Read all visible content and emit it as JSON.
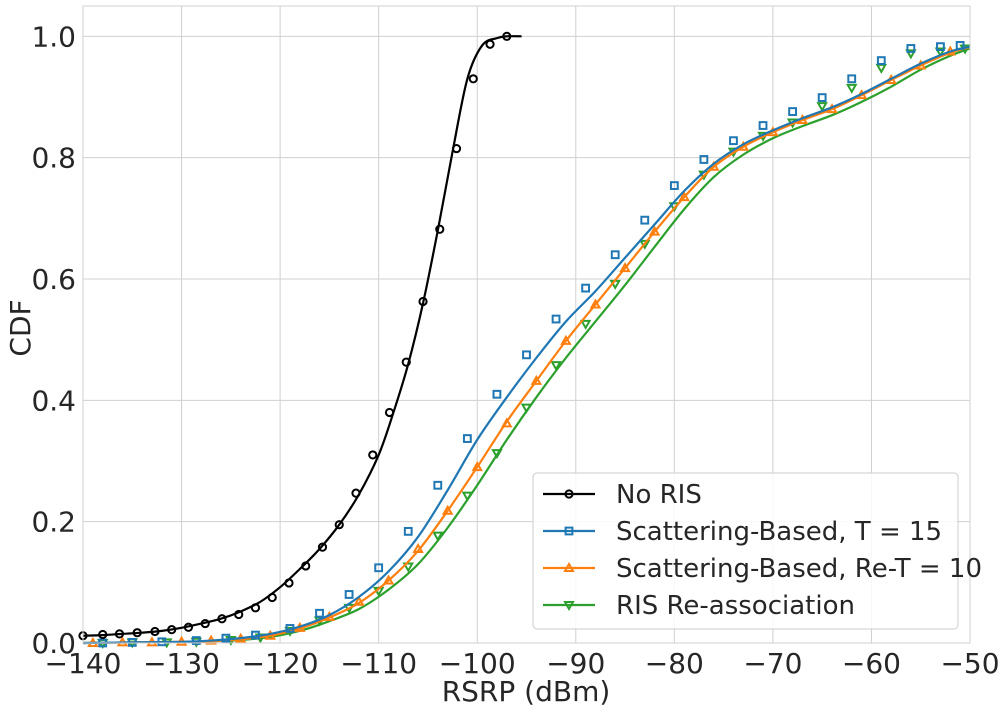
{
  "chart_data": {
    "type": "line",
    "title": "",
    "xlabel": "RSRP (dBm)",
    "ylabel": "CDF",
    "xlim": [
      -140,
      -50
    ],
    "ylim": [
      0,
      1.05
    ],
    "xticks": [
      -140,
      -130,
      -120,
      -110,
      -100,
      -90,
      -80,
      -70,
      -60,
      -50
    ],
    "xtick_labels": [
      "−140",
      "−130",
      "−120",
      "−110",
      "−100",
      "−90",
      "−80",
      "−70",
      "−60",
      "−50"
    ],
    "yticks": [
      0.0,
      0.2,
      0.4,
      0.6,
      0.8,
      1.0
    ],
    "ytick_labels": [
      "0.0",
      "0.2",
      "0.4",
      "0.6",
      "0.8",
      "1.0"
    ],
    "grid": true,
    "legend_position": "bottom-right",
    "series": [
      {
        "name": "No RIS",
        "color": "#000000",
        "marker": "circle",
        "x": [
          -140,
          -138,
          -136,
          -134,
          -132,
          -130,
          -128,
          -126,
          -124,
          -122,
          -120,
          -118,
          -116,
          -114,
          -112,
          -110,
          -108.5,
          -107,
          -105.5,
          -104,
          -102.5,
          -101,
          -99.5,
          -98,
          -97,
          -95.5
        ],
        "y": [
          0.012,
          0.013,
          0.015,
          0.017,
          0.02,
          0.025,
          0.032,
          0.04,
          0.052,
          0.068,
          0.092,
          0.122,
          0.155,
          0.195,
          0.245,
          0.31,
          0.38,
          0.46,
          0.56,
          0.68,
          0.81,
          0.93,
          0.985,
          0.997,
          1.0,
          1.0
        ],
        "marker_x": [
          -140,
          -138,
          -136.3,
          -134.5,
          -132.7,
          -131,
          -129.3,
          -127.6,
          -125.9,
          -124.2,
          -122.5,
          -120.8,
          -119.1,
          -117.4,
          -115.7,
          -114,
          -112.3,
          -110.6,
          -108.9,
          -107.2,
          -105.5,
          -103.8,
          -102.1,
          -100.4,
          -98.7,
          -97
        ],
        "marker_y": [
          0.012,
          0.014,
          0.015,
          0.017,
          0.019,
          0.022,
          0.026,
          0.032,
          0.04,
          0.047,
          0.058,
          0.075,
          0.099,
          0.127,
          0.158,
          0.195,
          0.247,
          0.31,
          0.38,
          0.463,
          0.563,
          0.682,
          0.815,
          0.93,
          0.987,
          1.0
        ]
      },
      {
        "name": "Scattering-Based, T = 15",
        "color": "#1f77b4",
        "marker": "square",
        "x": [
          -140,
          -135,
          -130,
          -127,
          -124,
          -121,
          -118,
          -115,
          -112,
          -109,
          -106,
          -103,
          -100,
          -97,
          -94,
          -91,
          -88,
          -85,
          -82,
          -79,
          -76,
          -73,
          -70,
          -67,
          -64,
          -61,
          -58,
          -55,
          -52,
          -50
        ],
        "y": [
          0.0,
          0.001,
          0.002,
          0.004,
          0.008,
          0.015,
          0.027,
          0.046,
          0.076,
          0.118,
          0.175,
          0.252,
          0.335,
          0.405,
          0.47,
          0.53,
          0.58,
          0.635,
          0.69,
          0.745,
          0.79,
          0.822,
          0.845,
          0.865,
          0.883,
          0.905,
          0.93,
          0.955,
          0.975,
          0.983
        ],
        "marker_x": [
          -138,
          -135,
          -132,
          -128.5,
          -125.5,
          -122.5,
          -119,
          -116,
          -113,
          -110,
          -107,
          -104,
          -101,
          -98,
          -95,
          -92,
          -89,
          -86,
          -83,
          -80,
          -77,
          -74,
          -71,
          -68,
          -65,
          -62,
          -59,
          -56,
          -53,
          -51
        ],
        "marker_y": [
          0.0,
          0.001,
          0.002,
          0.004,
          0.008,
          0.013,
          0.024,
          0.049,
          0.08,
          0.124,
          0.184,
          0.26,
          0.337,
          0.41,
          0.475,
          0.534,
          0.585,
          0.64,
          0.697,
          0.754,
          0.797,
          0.828,
          0.853,
          0.876,
          0.899,
          0.93,
          0.96,
          0.98,
          0.983,
          0.985
        ]
      },
      {
        "name": "Scattering-Based, Re-T = 10",
        "color": "#ff7f0e",
        "marker": "triangle-up",
        "x": [
          -140,
          -135,
          -130,
          -127,
          -124,
          -121,
          -118,
          -115,
          -112,
          -109,
          -106,
          -103,
          -100,
          -97,
          -94,
          -91,
          -88,
          -85,
          -82,
          -79,
          -76,
          -73,
          -70,
          -67,
          -64,
          -61,
          -58,
          -55,
          -52,
          -50
        ],
        "y": [
          0.0,
          0.001,
          0.002,
          0.003,
          0.006,
          0.012,
          0.024,
          0.042,
          0.066,
          0.103,
          0.152,
          0.218,
          0.29,
          0.365,
          0.432,
          0.498,
          0.558,
          0.618,
          0.678,
          0.735,
          0.785,
          0.818,
          0.842,
          0.862,
          0.88,
          0.903,
          0.928,
          0.952,
          0.973,
          0.982
        ],
        "marker_x": [
          -139,
          -136,
          -133,
          -130,
          -127,
          -124,
          -121,
          -118,
          -115,
          -112,
          -109,
          -106,
          -103,
          -100,
          -97,
          -94,
          -91,
          -88,
          -85,
          -82,
          -79,
          -76,
          -73,
          -70,
          -67,
          -64,
          -61,
          -58,
          -55,
          -52
        ],
        "marker_y": [
          0.0,
          0.001,
          0.001,
          0.002,
          0.004,
          0.007,
          0.012,
          0.025,
          0.043,
          0.068,
          0.103,
          0.155,
          0.218,
          0.29,
          0.362,
          0.432,
          0.498,
          0.558,
          0.618,
          0.678,
          0.735,
          0.785,
          0.818,
          0.842,
          0.862,
          0.88,
          0.903,
          0.928,
          0.952,
          0.975
        ]
      },
      {
        "name": "RIS Re-association",
        "color": "#2ca02c",
        "marker": "triangle-down",
        "x": [
          -140,
          -135,
          -130,
          -127,
          -124,
          -121,
          -118,
          -115,
          -112,
          -109,
          -106,
          -103,
          -100,
          -97,
          -94,
          -91,
          -88,
          -85,
          -82,
          -79,
          -76,
          -73,
          -70,
          -67,
          -64,
          -61,
          -58,
          -55,
          -52,
          -50
        ],
        "y": [
          0.0,
          0.001,
          0.001,
          0.003,
          0.005,
          0.01,
          0.02,
          0.036,
          0.056,
          0.088,
          0.13,
          0.19,
          0.26,
          0.335,
          0.405,
          0.47,
          0.53,
          0.59,
          0.653,
          0.715,
          0.768,
          0.805,
          0.832,
          0.852,
          0.87,
          0.892,
          0.917,
          0.945,
          0.968,
          0.98
        ],
        "marker_x": [
          -138,
          -135,
          -131.5,
          -128.5,
          -125,
          -122,
          -119,
          -116,
          -113,
          -110,
          -107,
          -104,
          -101,
          -98,
          -95,
          -92,
          -89,
          -86,
          -83,
          -80,
          -77,
          -74,
          -71,
          -68,
          -65,
          -62,
          -59,
          -56,
          -53,
          -50.5
        ],
        "marker_y": [
          0.0,
          0.001,
          0.001,
          0.002,
          0.005,
          0.009,
          0.02,
          0.037,
          0.058,
          0.086,
          0.126,
          0.177,
          0.243,
          0.313,
          0.388,
          0.458,
          0.526,
          0.592,
          0.658,
          0.72,
          0.772,
          0.81,
          0.836,
          0.858,
          0.885,
          0.915,
          0.948,
          0.972,
          0.975,
          0.98
        ]
      }
    ]
  }
}
